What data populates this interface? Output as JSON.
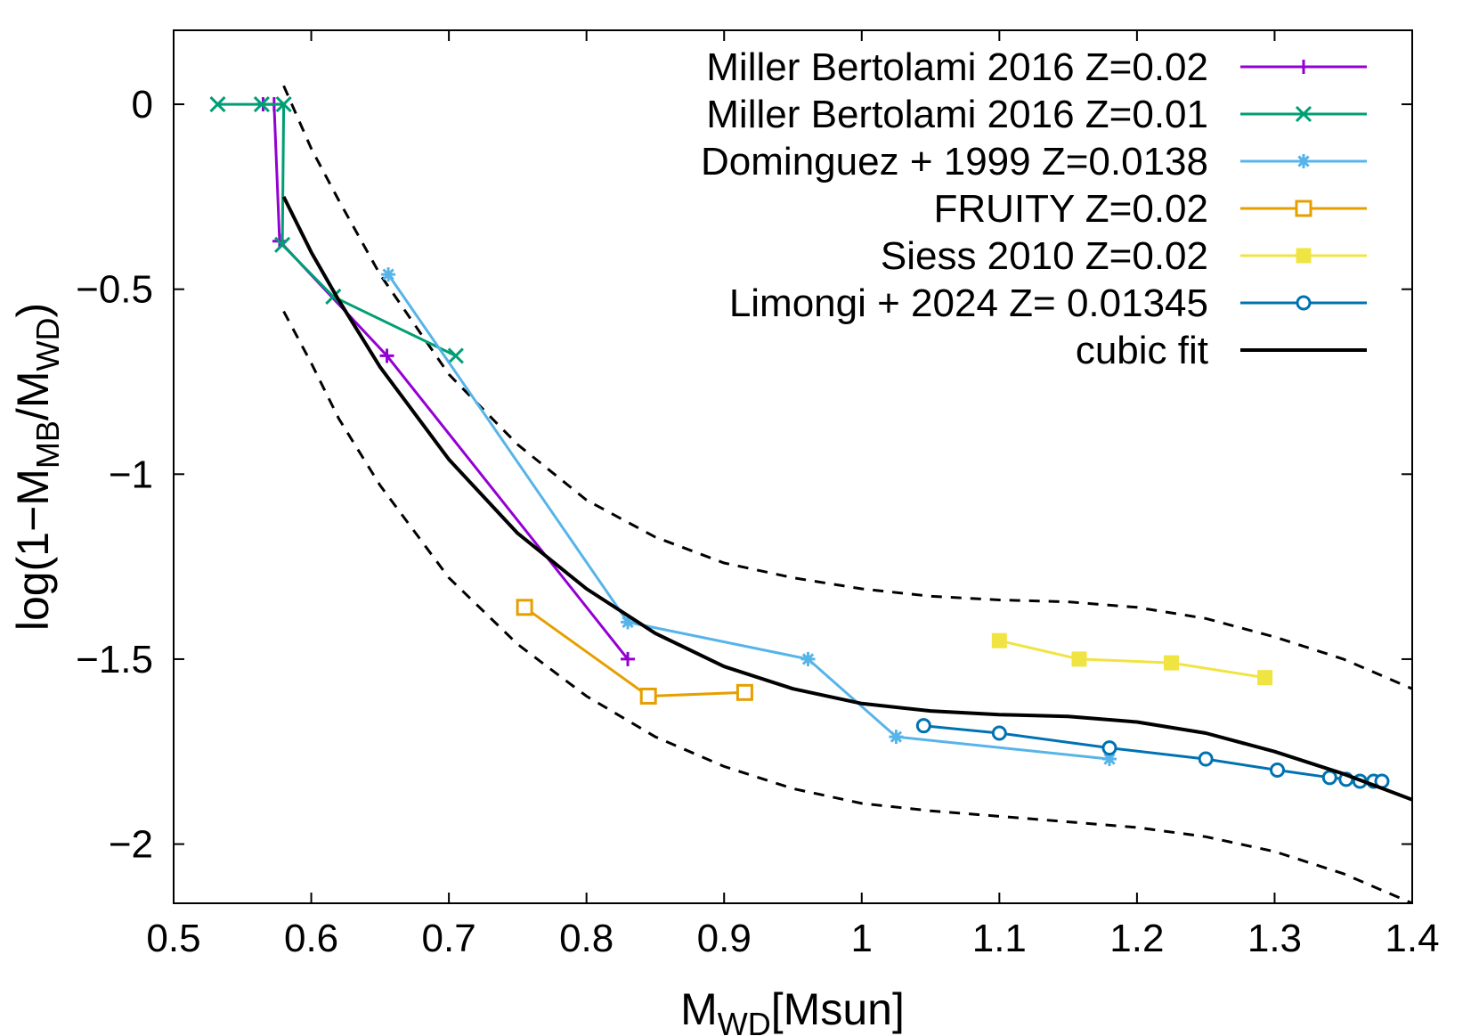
{
  "chart_data": {
    "type": "line",
    "xlabel": {
      "main": "M",
      "sub": "WD",
      "rest": "[Msun]"
    },
    "ylabel": {
      "p1": "log(1−M",
      "s1": "MB",
      "p2": "/M",
      "s2": "WD",
      "p3": ")"
    },
    "xlim": [
      0.5,
      1.4
    ],
    "ylim": [
      -2.16,
      0.2
    ],
    "x_ticks": [
      "0.5",
      "0.6",
      "0.7",
      "0.8",
      "0.9",
      "1",
      "1.1",
      "1.2",
      "1.3",
      "1.4"
    ],
    "y_ticks": [
      "0",
      "−0.5",
      "−1",
      "−1.5",
      "−2"
    ],
    "x_tick_values": [
      0.5,
      0.6,
      0.7,
      0.8,
      0.9,
      1.0,
      1.1,
      1.2,
      1.3,
      1.4
    ],
    "y_tick_values": [
      0,
      -0.5,
      -1,
      -1.5,
      -2
    ],
    "legend_position": "top-right",
    "grid": false,
    "series": [
      {
        "name": "Miller Bertolami 2016 Z=0.02",
        "color": "#9400d3",
        "marker": "plus",
        "x": [
          0.565,
          0.573,
          0.577,
          0.655,
          0.83
        ],
        "y": [
          0.0,
          0.0,
          -0.37,
          -0.68,
          -1.5
        ]
      },
      {
        "name": "Miller Bertolami 2016 Z=0.01",
        "color": "#009e73",
        "marker": "cross",
        "x": [
          0.532,
          0.564,
          0.58,
          0.579,
          0.616,
          0.705
        ],
        "y": [
          0.0,
          0.0,
          0.0,
          -0.38,
          -0.52,
          -0.68
        ]
      },
      {
        "name": "Dominguez + 1999 Z=0.0138",
        "color": "#56b4e9",
        "marker": "star",
        "x": [
          0.656,
          0.83,
          0.961,
          1.025,
          1.18
        ],
        "y": [
          -0.46,
          -1.4,
          -1.5,
          -1.71,
          -1.77
        ]
      },
      {
        "name": "FRUITY Z=0.02",
        "color": "#e69f00",
        "marker": "open-square",
        "x": [
          0.755,
          0.845,
          0.915
        ],
        "y": [
          -1.36,
          -1.6,
          -1.59
        ]
      },
      {
        "name": "Siess 2010 Z=0.02",
        "color": "#f0e442",
        "marker": "filled-square",
        "x": [
          1.1,
          1.158,
          1.225,
          1.293
        ],
        "y": [
          -1.45,
          -1.5,
          -1.51,
          -1.55
        ]
      },
      {
        "name": "Limongi + 2024 Z= 0.01345",
        "color": "#0072b2",
        "marker": "open-circle",
        "x": [
          1.045,
          1.1,
          1.18,
          1.25,
          1.302,
          1.34,
          1.352,
          1.362,
          1.372,
          1.378
        ],
        "y": [
          -1.68,
          -1.7,
          -1.74,
          -1.77,
          -1.8,
          -1.82,
          -1.825,
          -1.83,
          -1.83,
          -1.83
        ]
      },
      {
        "name": "cubic fit",
        "color": "#000000",
        "marker": "none",
        "x": [
          0.58,
          0.6,
          0.62,
          0.65,
          0.7,
          0.75,
          0.8,
          0.85,
          0.9,
          0.95,
          1.0,
          1.05,
          1.1,
          1.15,
          1.2,
          1.25,
          1.3,
          1.35,
          1.4
        ],
        "y": [
          -0.25,
          -0.4,
          -0.53,
          -0.71,
          -0.96,
          -1.16,
          -1.31,
          -1.43,
          -1.52,
          -1.58,
          -1.62,
          -1.64,
          -1.65,
          -1.655,
          -1.67,
          -1.7,
          -1.75,
          -1.81,
          -1.88
        ]
      }
    ],
    "bands": [
      {
        "style": "dashed",
        "color": "#000000",
        "x": [
          0.58,
          0.6,
          0.62,
          0.65,
          0.7,
          0.75,
          0.8,
          0.85,
          0.9,
          0.95,
          1.0,
          1.05,
          1.1,
          1.15,
          1.2,
          1.25,
          1.3,
          1.35,
          1.4
        ],
        "y": [
          0.05,
          -0.12,
          -0.26,
          -0.46,
          -0.73,
          -0.92,
          -1.07,
          -1.17,
          -1.24,
          -1.28,
          -1.31,
          -1.33,
          -1.34,
          -1.345,
          -1.36,
          -1.39,
          -1.44,
          -1.5,
          -1.58
        ]
      },
      {
        "style": "dashed",
        "color": "#000000",
        "x": [
          0.58,
          0.6,
          0.62,
          0.65,
          0.7,
          0.75,
          0.8,
          0.85,
          0.9,
          0.95,
          1.0,
          1.05,
          1.1,
          1.15,
          1.2,
          1.25,
          1.3,
          1.35,
          1.4
        ],
        "y": [
          -0.56,
          -0.7,
          -0.85,
          -1.03,
          -1.28,
          -1.46,
          -1.6,
          -1.71,
          -1.79,
          -1.85,
          -1.89,
          -1.91,
          -1.925,
          -1.94,
          -1.955,
          -1.98,
          -2.02,
          -2.08,
          -2.16
        ]
      }
    ]
  }
}
